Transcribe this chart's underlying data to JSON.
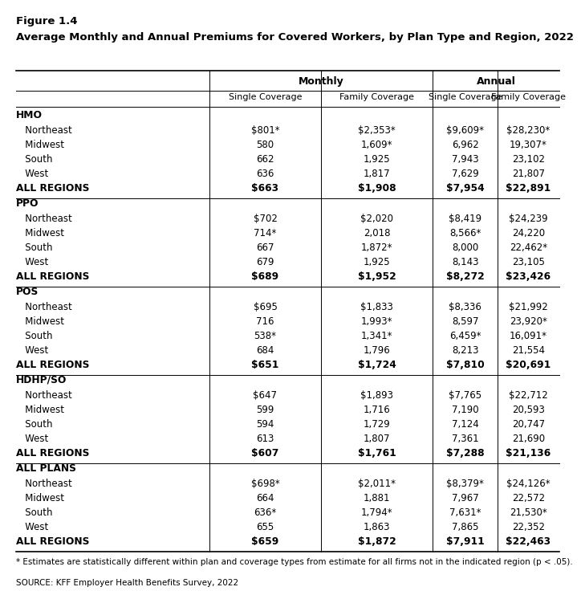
{
  "figure_label": "Figure 1.4",
  "title": "Average Monthly and Annual Premiums for Covered Workers, by Plan Type and Region, 2022",
  "sub_headers": [
    "Single Coverage",
    "Family Coverage",
    "Single Coverage",
    "Family Coverage"
  ],
  "sections": [
    {
      "plan": "HMO",
      "rows": [
        {
          "region": "   Northeast",
          "vals": [
            "$801*",
            "$2,353*",
            "$9,609*",
            "$28,230*"
          ]
        },
        {
          "region": "   Midwest",
          "vals": [
            "580",
            "1,609*",
            "6,962",
            "19,307*"
          ]
        },
        {
          "region": "   South",
          "vals": [
            "662",
            "1,925",
            "7,943",
            "23,102"
          ]
        },
        {
          "region": "   West",
          "vals": [
            "636",
            "1,817",
            "7,629",
            "21,807"
          ]
        }
      ],
      "allregions": [
        "$663",
        "$1,908",
        "$7,954",
        "$22,891"
      ]
    },
    {
      "plan": "PPO",
      "rows": [
        {
          "region": "   Northeast",
          "vals": [
            "$702",
            "$2,020",
            "$8,419",
            "$24,239"
          ]
        },
        {
          "region": "   Midwest",
          "vals": [
            "714*",
            "2,018",
            "8,566*",
            "24,220"
          ]
        },
        {
          "region": "   South",
          "vals": [
            "667",
            "1,872*",
            "8,000",
            "22,462*"
          ]
        },
        {
          "region": "   West",
          "vals": [
            "679",
            "1,925",
            "8,143",
            "23,105"
          ]
        }
      ],
      "allregions": [
        "$689",
        "$1,952",
        "$8,272",
        "$23,426"
      ]
    },
    {
      "plan": "POS",
      "rows": [
        {
          "region": "   Northeast",
          "vals": [
            "$695",
            "$1,833",
            "$8,336",
            "$21,992"
          ]
        },
        {
          "region": "   Midwest",
          "vals": [
            "716",
            "1,993*",
            "8,597",
            "23,920*"
          ]
        },
        {
          "region": "   South",
          "vals": [
            "538*",
            "1,341*",
            "6,459*",
            "16,091*"
          ]
        },
        {
          "region": "   West",
          "vals": [
            "684",
            "1,796",
            "8,213",
            "21,554"
          ]
        }
      ],
      "allregions": [
        "$651",
        "$1,724",
        "$7,810",
        "$20,691"
      ]
    },
    {
      "plan": "HDHP/SO",
      "rows": [
        {
          "region": "   Northeast",
          "vals": [
            "$647",
            "$1,893",
            "$7,765",
            "$22,712"
          ]
        },
        {
          "region": "   Midwest",
          "vals": [
            "599",
            "1,716",
            "7,190",
            "20,593"
          ]
        },
        {
          "region": "   South",
          "vals": [
            "594",
            "1,729",
            "7,124",
            "20,747"
          ]
        },
        {
          "region": "   West",
          "vals": [
            "613",
            "1,807",
            "7,361",
            "21,690"
          ]
        }
      ],
      "allregions": [
        "$607",
        "$1,761",
        "$7,288",
        "$21,136"
      ]
    },
    {
      "plan": "ALL PLANS",
      "rows": [
        {
          "region": "   Northeast",
          "vals": [
            "$698*",
            "$2,011*",
            "$8,379*",
            "$24,126*"
          ]
        },
        {
          "region": "   Midwest",
          "vals": [
            "664",
            "1,881",
            "7,967",
            "22,572"
          ]
        },
        {
          "region": "   South",
          "vals": [
            "636*",
            "1,794*",
            "7,631*",
            "21,530*"
          ]
        },
        {
          "region": "   West",
          "vals": [
            "655",
            "1,863",
            "7,865",
            "22,352"
          ]
        }
      ],
      "allregions": [
        "$659",
        "$1,872",
        "$7,911",
        "$22,463"
      ]
    }
  ],
  "footnote": "* Estimates are statistically different within plan and coverage types from estimate for all firms not in the indicated region (p < .05).",
  "source": "SOURCE: KFF Employer Health Benefits Survey, 2022",
  "bg_color": "#ffffff"
}
